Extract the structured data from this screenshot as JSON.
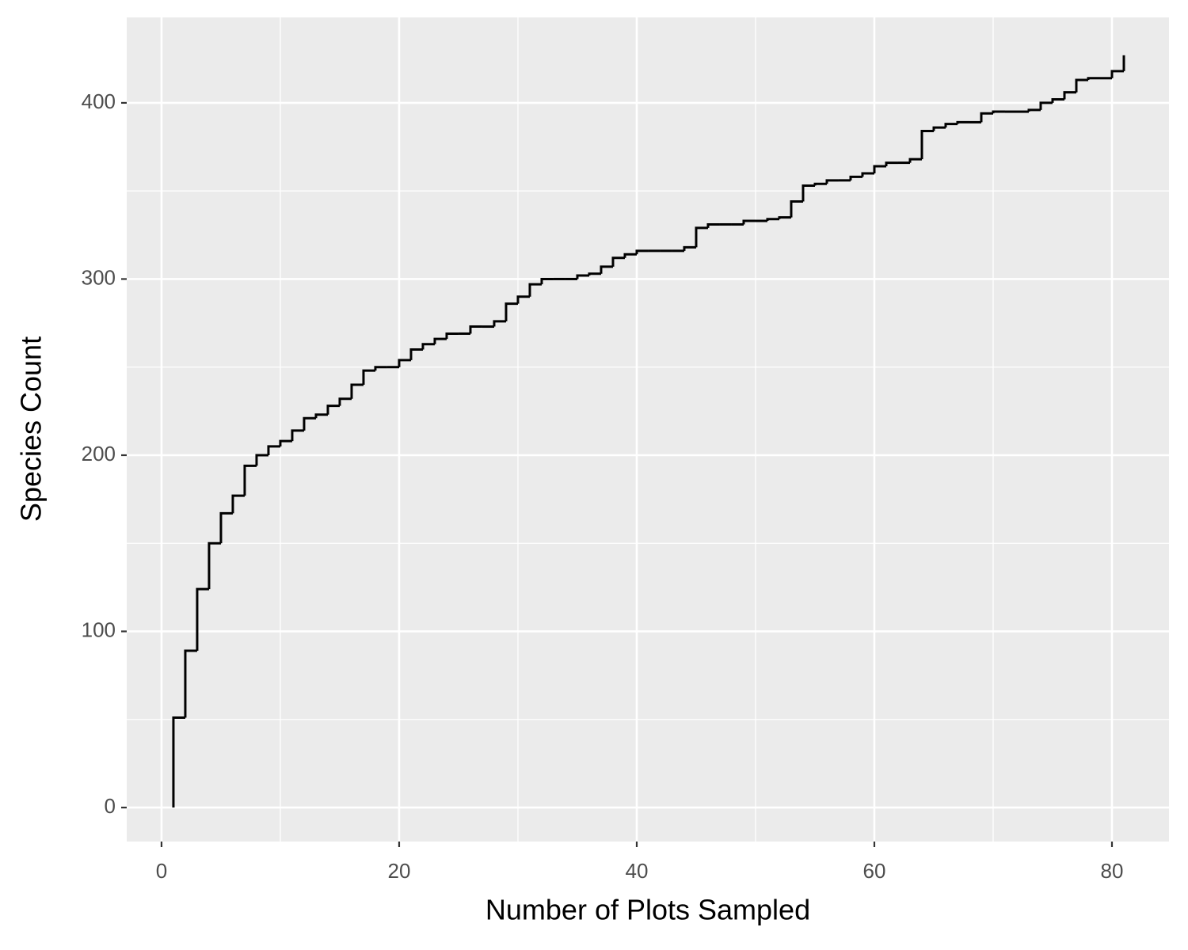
{
  "chart_data": {
    "type": "step",
    "x_label": "Number of Plots Sampled",
    "y_label": "Species Count",
    "x": [
      1,
      1,
      2,
      3,
      4,
      5,
      6,
      7,
      8,
      9,
      10,
      11,
      12,
      13,
      14,
      15,
      16,
      17,
      18,
      19,
      20,
      21,
      22,
      23,
      24,
      25,
      26,
      27,
      28,
      29,
      30,
      31,
      32,
      33,
      34,
      35,
      36,
      37,
      38,
      39,
      40,
      41,
      42,
      43,
      44,
      45,
      46,
      47,
      48,
      49,
      50,
      51,
      52,
      53,
      54,
      55,
      56,
      57,
      58,
      59,
      60,
      61,
      62,
      63,
      64,
      65,
      66,
      67,
      68,
      69,
      70,
      71,
      72,
      73,
      74,
      75,
      76,
      77,
      78,
      79,
      80,
      81
    ],
    "values": [
      0,
      51,
      89,
      124,
      150,
      167,
      177,
      194,
      200,
      205,
      208,
      214,
      221,
      223,
      228,
      232,
      240,
      248,
      250,
      250,
      254,
      260,
      263,
      266,
      269,
      269,
      273,
      273,
      276,
      286,
      290,
      297,
      300,
      300,
      300,
      302,
      303,
      307,
      312,
      314,
      316,
      316,
      316,
      316,
      318,
      329,
      331,
      331,
      331,
      333,
      333,
      334,
      335,
      344,
      353,
      354,
      356,
      356,
      358,
      360,
      364,
      366,
      366,
      368,
      384,
      386,
      388,
      389,
      389,
      394,
      395,
      395,
      395,
      396,
      400,
      402,
      406,
      413,
      414,
      414,
      418,
      427
    ],
    "color": "#000000",
    "xlim": [
      -2.93,
      84.8
    ],
    "ylim": [
      -19.3,
      448.5
    ],
    "xticks": [
      0,
      20,
      40,
      60,
      80
    ],
    "yticks": [
      0,
      100,
      200,
      300,
      400
    ],
    "grid": true
  }
}
